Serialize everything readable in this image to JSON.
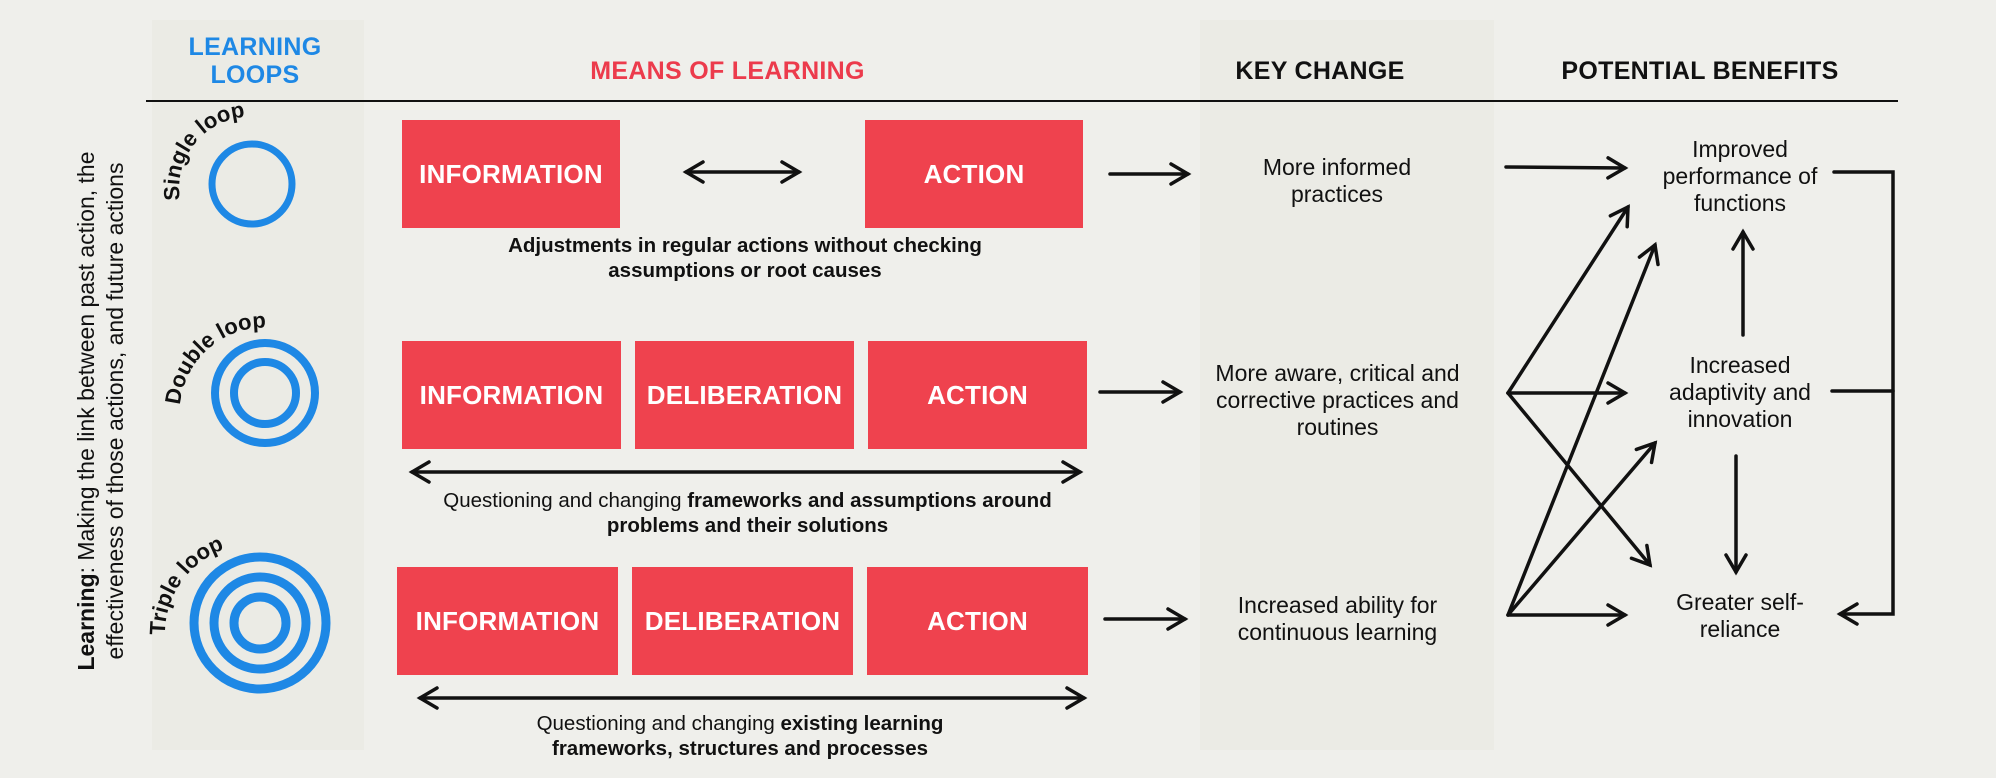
{
  "side_label": {
    "bold": "Learning",
    "rest": ": Making the link between past action, the effectiveness of those actions, and future actions"
  },
  "headers": {
    "loops": "LEARNING LOOPS",
    "means": "MEANS OF LEARNING",
    "key_change": "KEY CHANGE",
    "benefits": "POTENTIAL BENEFITS"
  },
  "loops": {
    "single": {
      "label": "Single loop",
      "rings": 1
    },
    "double": {
      "label": "Double loop",
      "rings": 2
    },
    "triple": {
      "label": "Triple loop",
      "rings": 3
    }
  },
  "rows": {
    "single": {
      "boxes": [
        "INFORMATION",
        "ACTION"
      ],
      "caption_bold": "Adjustments in regular actions without checking assumptions or root causes",
      "key_change": "More informed practices"
    },
    "double": {
      "boxes": [
        "INFORMATION",
        "DELIBERATION",
        "ACTION"
      ],
      "caption_normal": "Questioning and changing",
      "caption_bold": "frameworks and assumptions around problems and their solutions",
      "key_change": "More aware, critical and corrective practices and routines"
    },
    "triple": {
      "boxes": [
        "INFORMATION",
        "DELIBERATION",
        "ACTION"
      ],
      "caption_normal": "Questioning and changing",
      "caption_bold": "existing learning frameworks, structures and processes",
      "key_change": "Increased ability for continuous learning"
    }
  },
  "benefits": {
    "top": "Improved performance of functions",
    "middle": "Increased adaptivity and innovation",
    "bottom": "Greater self-reliance"
  },
  "colors": {
    "accent_blue": "#1e88e5",
    "box_red": "#ef424e",
    "header_red": "#ec3b4c"
  }
}
